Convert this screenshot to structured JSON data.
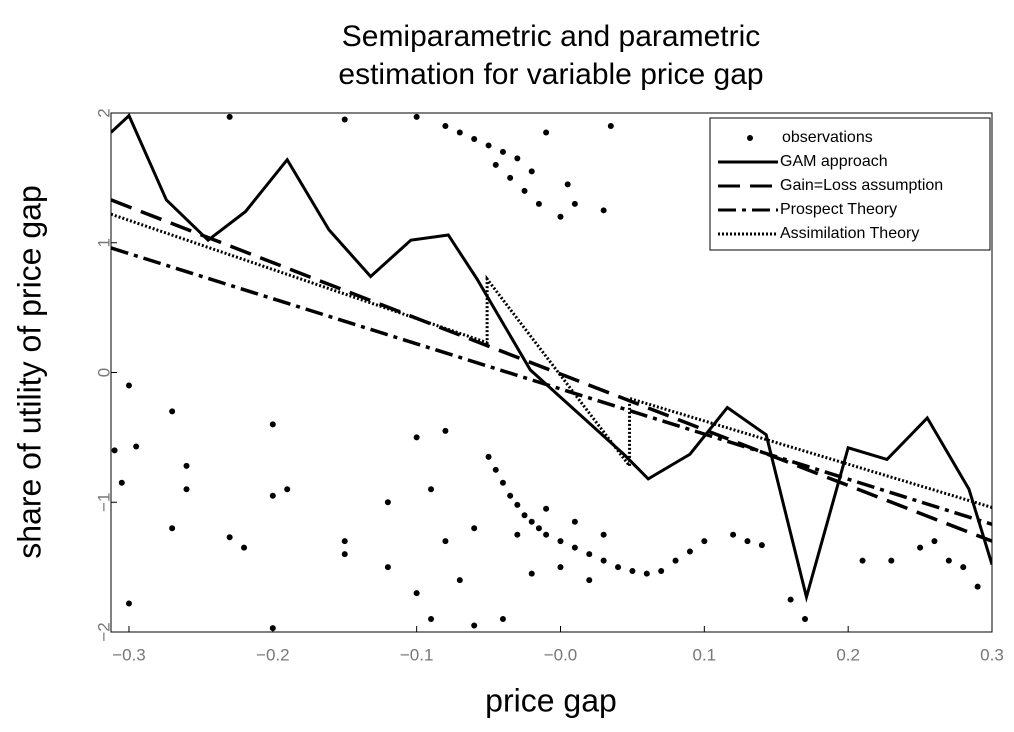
{
  "chart_data": {
    "type": "line",
    "title": [
      "Semiparametric and parametric",
      "estimation for variable price gap"
    ],
    "xlabel": "price gap",
    "ylabel": "share of utility of price gap",
    "xlim": [
      -0.3125,
      0.3
    ],
    "ylim": [
      -2,
      2
    ],
    "xticks": [
      {
        "value": -0.3,
        "label": "−0.3"
      },
      {
        "value": -0.2,
        "label": "−0.2"
      },
      {
        "value": -0.1,
        "label": "−0.1"
      },
      {
        "value": 0,
        "label": "−0.0"
      },
      0.1,
      0.2,
      0.3
    ],
    "yticks": [
      {
        "value": -2,
        "label": "−2"
      },
      {
        "value": -1,
        "label": "−1"
      },
      0,
      1,
      2
    ],
    "legend": "upper right",
    "series": [
      {
        "name": "observations",
        "type": "scatter",
        "style": "dots",
        "color": "#000000",
        "x": [
          -0.15,
          -0.1,
          -0.08,
          -0.07,
          -0.06,
          -0.05,
          -0.045,
          -0.04,
          -0.035,
          -0.03,
          -0.025,
          -0.02,
          -0.015,
          -0.01,
          0.0,
          0.005,
          0.01,
          0.03,
          0.035,
          -0.23,
          -0.31,
          -0.305,
          -0.3,
          -0.295,
          -0.3,
          -0.27,
          -0.27,
          -0.26,
          -0.26,
          -0.23,
          -0.22,
          -0.2,
          -0.2,
          -0.19,
          -0.2,
          -0.15,
          -0.15,
          -0.12,
          -0.12,
          -0.1,
          -0.08,
          -0.09,
          -0.1,
          -0.09,
          -0.08,
          -0.07,
          -0.06,
          -0.06,
          -0.05,
          -0.045,
          -0.04,
          -0.035,
          -0.03,
          -0.025,
          -0.02,
          -0.015,
          -0.01,
          0.0,
          0.01,
          0.02,
          0.03,
          0.04,
          0.05,
          0.06,
          0.07,
          0.08,
          0.09,
          0.1,
          -0.03,
          -0.01,
          0.01,
          0.03,
          -0.04,
          -0.02,
          0.0,
          0.02,
          0.12,
          0.13,
          0.14,
          0.16,
          0.17,
          0.21,
          0.23,
          0.25,
          0.26,
          0.27,
          0.28,
          0.29
        ],
        "values": [
          1.95,
          1.97,
          1.9,
          1.85,
          1.8,
          1.75,
          1.6,
          1.7,
          1.5,
          1.65,
          1.4,
          1.55,
          1.3,
          1.85,
          1.2,
          1.45,
          1.3,
          1.25,
          1.9,
          1.97,
          -0.6,
          -0.85,
          -0.1,
          -0.57,
          -1.78,
          -0.3,
          -1.2,
          -0.72,
          -0.9,
          -1.27,
          -1.35,
          -0.4,
          -0.95,
          -0.9,
          -1.97,
          -1.3,
          -1.4,
          -1.5,
          -1.0,
          -0.5,
          -0.45,
          -0.9,
          -1.7,
          -1.9,
          -1.3,
          -1.6,
          -1.2,
          -1.95,
          -0.65,
          -0.75,
          -0.85,
          -0.95,
          -1.02,
          -1.1,
          -1.15,
          -1.2,
          -1.25,
          -1.3,
          -1.35,
          -1.4,
          -1.45,
          -1.5,
          -1.53,
          -1.55,
          -1.53,
          -1.45,
          -1.38,
          -1.3,
          -1.25,
          -1.05,
          -1.15,
          -1.25,
          -1.9,
          -1.55,
          -1.5,
          -1.6,
          -1.25,
          -1.3,
          -1.33,
          -1.75,
          -1.9,
          -1.45,
          -1.45,
          -1.35,
          -1.3,
          -1.45,
          -1.5,
          -1.65
        ]
      },
      {
        "name": "GAM approach",
        "style": "solid",
        "color": "#000000",
        "x": [
          -0.3125,
          -0.3,
          -0.274,
          -0.245,
          -0.219,
          -0.19,
          -0.161,
          -0.132,
          -0.104,
          -0.078,
          -0.058,
          -0.021,
          0.044,
          0.061,
          0.09,
          0.116,
          0.143,
          0.171,
          0.2,
          0.227,
          0.255,
          0.284,
          0.3
        ],
        "values": [
          1.85,
          1.98,
          1.33,
          1.02,
          1.24,
          1.64,
          1.1,
          0.74,
          1.02,
          1.06,
          0.72,
          0.02,
          -0.63,
          -0.82,
          -0.63,
          -0.27,
          -0.48,
          -1.73,
          -0.58,
          -0.67,
          -0.35,
          -0.9,
          -1.48
        ]
      },
      {
        "name": "Gain=Loss assumption",
        "style": "dashed",
        "color": "#000000",
        "x": [
          -0.3125,
          0.3
        ],
        "values": [
          1.33,
          -1.3
        ]
      },
      {
        "name": "Prospect Theory",
        "style": "dashdot",
        "color": "#000000",
        "x": [
          -0.3125,
          0.3
        ],
        "values": [
          0.96,
          -1.17
        ]
      },
      {
        "name": "Assimilation Theory",
        "style": "dotted",
        "color": "#000000",
        "x": [
          -0.3125,
          -0.051,
          -0.051,
          0.048,
          0.048,
          0.3
        ],
        "values": [
          1.22,
          0.23,
          0.72,
          -0.72,
          -0.2,
          -1.04
        ]
      }
    ]
  }
}
